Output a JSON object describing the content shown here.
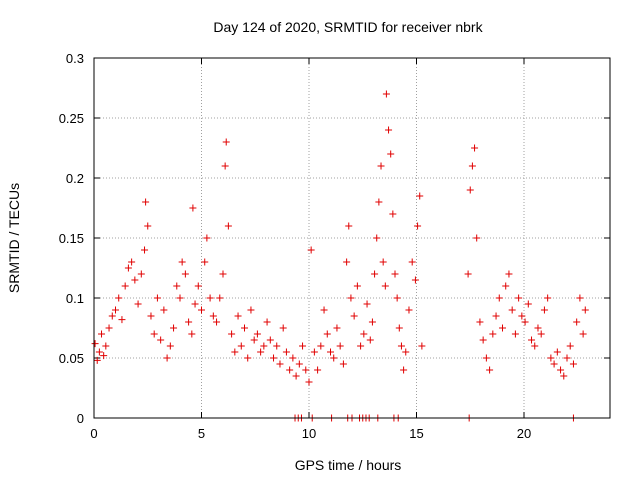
{
  "chart_data": {
    "type": "scatter",
    "title": "Day 124 of 2020, SRMTID for receiver nbrk",
    "xlabel": "GPS time / hours",
    "ylabel": "SRMTID / TECUs",
    "xlim": [
      0,
      24
    ],
    "ylim": [
      0,
      0.3
    ],
    "x_ticks": [
      0,
      5,
      10,
      15,
      20
    ],
    "x_tick_labels": [
      "0",
      "5",
      "10",
      "15",
      "20"
    ],
    "y_ticks": [
      0,
      0.05,
      0.1,
      0.15,
      0.2,
      0.25,
      0.3
    ],
    "y_tick_labels": [
      "0",
      "0.05",
      "0.1",
      "0.15",
      "0.2",
      "0.25",
      "0.3"
    ],
    "grid": true,
    "marker": "plus",
    "series": [
      {
        "name": "SRMTID",
        "color": "#e00000",
        "x": [
          0.05,
          0.15,
          0.25,
          0.35,
          0.45,
          0.55,
          0.7,
          0.85,
          1.0,
          1.15,
          1.3,
          1.45,
          1.6,
          1.75,
          1.9,
          2.05,
          2.2,
          2.35,
          2.4,
          2.5,
          2.65,
          2.8,
          2.95,
          3.1,
          3.25,
          3.4,
          3.55,
          3.7,
          3.85,
          4.0,
          4.1,
          4.25,
          4.4,
          4.55,
          4.6,
          4.7,
          4.85,
          5.0,
          5.15,
          5.25,
          5.4,
          5.55,
          5.7,
          5.85,
          6.0,
          6.1,
          6.15,
          6.25,
          6.4,
          6.55,
          6.7,
          6.85,
          7.0,
          7.15,
          7.3,
          7.45,
          7.6,
          7.75,
          7.9,
          8.05,
          8.2,
          8.35,
          8.5,
          8.65,
          8.8,
          8.95,
          9.1,
          9.25,
          9.4,
          9.55,
          9.7,
          9.85,
          10.0,
          10.1,
          10.25,
          10.4,
          10.55,
          10.7,
          10.85,
          11.0,
          11.15,
          11.3,
          11.45,
          11.6,
          11.75,
          11.85,
          11.95,
          12.1,
          12.25,
          12.4,
          12.55,
          12.7,
          12.85,
          12.95,
          13.05,
          13.15,
          13.25,
          13.35,
          13.45,
          13.55,
          13.6,
          13.7,
          13.8,
          13.9,
          14.0,
          14.1,
          14.2,
          14.3,
          14.4,
          14.5,
          14.65,
          14.8,
          14.95,
          15.05,
          15.15,
          15.25,
          17.4,
          17.5,
          17.6,
          17.7,
          17.8,
          17.95,
          18.1,
          18.25,
          18.4,
          18.55,
          18.7,
          18.85,
          19.0,
          19.15,
          19.3,
          19.45,
          19.6,
          19.75,
          19.9,
          20.05,
          20.2,
          20.35,
          20.5,
          20.65,
          20.8,
          20.95,
          21.1,
          21.25,
          21.4,
          21.55,
          21.7,
          21.85,
          22.0,
          22.15,
          22.3,
          22.45,
          22.6,
          22.75,
          22.85,
          9.35,
          9.5,
          9.65,
          10.15,
          11.05,
          11.8,
          12.0,
          12.35,
          12.5,
          12.65,
          12.8,
          13.2,
          13.95,
          14.15,
          17.45,
          22.3
        ],
        "y": [
          0.062,
          0.048,
          0.055,
          0.07,
          0.052,
          0.06,
          0.075,
          0.085,
          0.09,
          0.1,
          0.082,
          0.11,
          0.125,
          0.13,
          0.115,
          0.095,
          0.12,
          0.14,
          0.18,
          0.16,
          0.085,
          0.07,
          0.1,
          0.065,
          0.09,
          0.05,
          0.06,
          0.075,
          0.11,
          0.1,
          0.13,
          0.12,
          0.08,
          0.07,
          0.175,
          0.095,
          0.11,
          0.09,
          0.13,
          0.15,
          0.1,
          0.085,
          0.08,
          0.1,
          0.12,
          0.21,
          0.23,
          0.16,
          0.07,
          0.055,
          0.085,
          0.06,
          0.075,
          0.05,
          0.09,
          0.065,
          0.07,
          0.055,
          0.06,
          0.08,
          0.065,
          0.05,
          0.06,
          0.045,
          0.075,
          0.055,
          0.04,
          0.05,
          0.035,
          0.045,
          0.06,
          0.04,
          0.03,
          0.14,
          0.055,
          0.04,
          0.06,
          0.09,
          0.07,
          0.055,
          0.05,
          0.075,
          0.06,
          0.045,
          0.13,
          0.16,
          0.1,
          0.085,
          0.11,
          0.06,
          0.07,
          0.095,
          0.065,
          0.08,
          0.12,
          0.15,
          0.18,
          0.21,
          0.13,
          0.11,
          0.27,
          0.24,
          0.22,
          0.17,
          0.12,
          0.1,
          0.075,
          0.06,
          0.04,
          0.055,
          0.09,
          0.13,
          0.115,
          0.16,
          0.185,
          0.06,
          0.12,
          0.19,
          0.21,
          0.225,
          0.15,
          0.08,
          0.065,
          0.05,
          0.04,
          0.07,
          0.085,
          0.1,
          0.075,
          0.11,
          0.12,
          0.09,
          0.07,
          0.1,
          0.085,
          0.08,
          0.095,
          0.065,
          0.06,
          0.075,
          0.07,
          0.09,
          0.1,
          0.05,
          0.045,
          0.055,
          0.04,
          0.035,
          0.05,
          0.06,
          0.045,
          0.08,
          0.1,
          0.07,
          0.09,
          0.0,
          0.0,
          0.0,
          0.0,
          0.0,
          0.0,
          0.0,
          0.0,
          0.0,
          0.0,
          0.0,
          0.0,
          0.0,
          0.0,
          0.0,
          0.0
        ]
      }
    ]
  }
}
